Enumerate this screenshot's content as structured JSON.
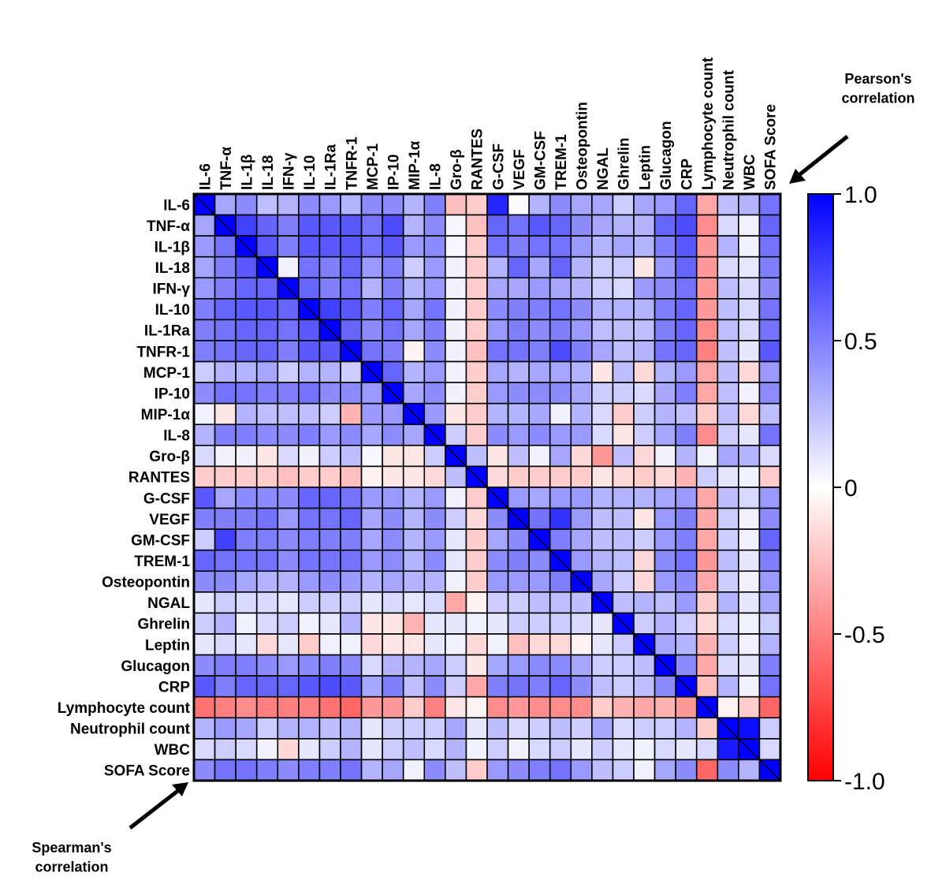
{
  "chart_data": {
    "type": "heatmap",
    "title": "",
    "variables": [
      "IL-6",
      "TNF-α",
      "IL-1β",
      "IL-18",
      "IFN-γ",
      "IL-10",
      "IL-1Ra",
      "TNFR-1",
      "MCP-1",
      "IP-10",
      "MIP-1α",
      "IL-8",
      "Gro-β",
      "RANTES",
      "G-CSF",
      "VEGF",
      "GM-CSF",
      "TREM-1",
      "Osteopontin",
      "NGAL",
      "Ghrelin",
      "Leptin",
      "Glucagon",
      "CRP",
      "Lymphocyte count",
      "Neutrophil count",
      "WBC",
      "SOFA Score"
    ],
    "upper_triangle": "Pearson's correlation",
    "lower_triangle": "Spearman's correlation",
    "colorbar": {
      "min": -1.0,
      "max": 1.0,
      "ticks": [
        1.0,
        0.5,
        0,
        -0.5,
        -1.0
      ],
      "tick_labels": [
        "1.0",
        "0.5",
        "0",
        "-0.5",
        "-1.0"
      ],
      "low_color": "#ff0000",
      "mid_color": "#ffffff",
      "high_color": "#0000ff"
    },
    "matrix": [
      [
        1.0,
        0.35,
        0.45,
        0.25,
        0.3,
        0.45,
        0.4,
        0.3,
        0.45,
        0.45,
        0.3,
        0.5,
        -0.25,
        -0.2,
        0.85,
        0.02,
        0.3,
        0.45,
        0.35,
        0.35,
        0.2,
        0.35,
        0.4,
        0.6,
        -0.35,
        0.25,
        0.3,
        0.55
      ],
      [
        0.35,
        1.0,
        0.75,
        0.6,
        0.5,
        0.65,
        0.65,
        0.65,
        0.55,
        0.7,
        0.3,
        0.45,
        0.03,
        -0.25,
        0.6,
        0.55,
        0.65,
        0.6,
        0.45,
        0.35,
        0.3,
        0.3,
        0.6,
        0.7,
        -0.45,
        0.15,
        0.05,
        0.6
      ],
      [
        0.4,
        0.55,
        1.0,
        0.65,
        0.5,
        0.65,
        0.65,
        0.65,
        0.55,
        0.65,
        0.4,
        0.45,
        0.03,
        -0.2,
        0.55,
        0.5,
        0.55,
        0.55,
        0.4,
        0.3,
        0.35,
        0.3,
        0.5,
        0.65,
        -0.4,
        0.3,
        0.05,
        0.55
      ],
      [
        0.35,
        0.5,
        0.65,
        1.0,
        0.05,
        0.55,
        0.5,
        0.6,
        0.4,
        0.5,
        0.2,
        0.4,
        0.05,
        -0.2,
        0.3,
        0.6,
        0.35,
        0.6,
        0.3,
        0.2,
        0.2,
        -0.1,
        0.4,
        0.6,
        -0.4,
        0.15,
        0.1,
        0.5
      ],
      [
        0.4,
        0.5,
        0.6,
        0.6,
        1.0,
        0.6,
        0.5,
        0.55,
        0.3,
        0.5,
        0.3,
        0.4,
        0.05,
        -0.2,
        0.35,
        0.35,
        0.4,
        0.35,
        0.3,
        0.2,
        0.15,
        0.4,
        0.45,
        0.55,
        -0.4,
        0.25,
        0.15,
        0.45
      ],
      [
        0.5,
        0.6,
        0.65,
        0.65,
        0.6,
        1.0,
        0.75,
        0.65,
        0.5,
        0.6,
        0.35,
        0.55,
        0.05,
        -0.2,
        0.45,
        0.5,
        0.5,
        0.55,
        0.45,
        0.3,
        0.3,
        0.3,
        0.5,
        0.6,
        -0.4,
        0.25,
        0.15,
        0.55
      ],
      [
        0.5,
        0.55,
        0.6,
        0.6,
        0.55,
        0.65,
        1.0,
        0.6,
        0.45,
        0.55,
        0.35,
        0.5,
        0.05,
        -0.2,
        0.4,
        0.5,
        0.45,
        0.5,
        0.4,
        0.25,
        0.25,
        0.25,
        0.5,
        0.6,
        -0.45,
        0.25,
        0.15,
        0.55
      ],
      [
        0.5,
        0.55,
        0.6,
        0.6,
        0.5,
        0.65,
        0.65,
        1.0,
        0.55,
        0.5,
        -0.05,
        0.45,
        0.05,
        -0.25,
        0.55,
        0.55,
        0.5,
        0.7,
        0.5,
        0.35,
        0.25,
        0.3,
        0.55,
        0.6,
        -0.5,
        0.25,
        0.1,
        0.65
      ],
      [
        0.2,
        0.3,
        0.3,
        0.35,
        0.2,
        0.3,
        0.3,
        0.2,
        1.0,
        0.6,
        0.3,
        0.4,
        0.05,
        -0.2,
        0.35,
        0.3,
        0.35,
        0.35,
        0.3,
        -0.1,
        0.25,
        -0.15,
        0.3,
        0.4,
        -0.35,
        0.25,
        -0.15,
        0.4
      ],
      [
        0.45,
        0.55,
        0.55,
        0.5,
        0.5,
        0.55,
        0.45,
        0.45,
        0.4,
        1.0,
        0.35,
        0.45,
        0.05,
        -0.2,
        0.4,
        0.45,
        0.45,
        0.45,
        0.35,
        0.2,
        0.2,
        0.15,
        0.35,
        0.5,
        -0.35,
        0.25,
        0.05,
        0.45
      ],
      [
        0.05,
        -0.1,
        0.3,
        0.25,
        0.25,
        0.25,
        0.2,
        -0.3,
        0.4,
        0.4,
        1.0,
        0.4,
        -0.1,
        -0.2,
        0.3,
        0.3,
        0.35,
        0.05,
        0.3,
        0.15,
        -0.2,
        0.2,
        0.3,
        0.25,
        -0.2,
        0.25,
        -0.15,
        0.25
      ],
      [
        0.3,
        0.5,
        0.5,
        0.45,
        0.45,
        0.5,
        0.4,
        0.45,
        0.35,
        0.45,
        0.35,
        1.0,
        0.2,
        -0.2,
        0.45,
        0.4,
        0.45,
        0.4,
        0.4,
        0.15,
        -0.1,
        0.2,
        0.35,
        0.5,
        -0.45,
        0.2,
        0.1,
        0.55
      ],
      [
        0.15,
        0.05,
        0.05,
        -0.1,
        0.15,
        0.05,
        0.2,
        0.25,
        0.03,
        -0.1,
        -0.1,
        0.2,
        1.0,
        0.25,
        -0.1,
        0.25,
        0.05,
        0.35,
        -0.15,
        -0.4,
        0.25,
        -0.15,
        0.05,
        0.3,
        0.05,
        0.35,
        0.3,
        0.15
      ],
      [
        -0.2,
        -0.2,
        -0.2,
        -0.2,
        -0.25,
        -0.2,
        -0.2,
        -0.25,
        -0.05,
        -0.1,
        -0.1,
        -0.15,
        0.25,
        1.0,
        -0.15,
        -0.2,
        -0.2,
        -0.2,
        -0.2,
        -0.1,
        -0.15,
        -0.2,
        -0.15,
        -0.3,
        0.2,
        0.1,
        0.05,
        -0.2
      ],
      [
        0.65,
        0.35,
        0.45,
        0.45,
        0.45,
        0.6,
        0.6,
        0.55,
        0.4,
        0.4,
        0.3,
        0.4,
        0.05,
        -0.2,
        1.0,
        0.4,
        0.35,
        0.4,
        0.4,
        0.3,
        0.3,
        0.3,
        0.35,
        0.4,
        -0.35,
        0.25,
        0.15,
        0.4
      ],
      [
        0.5,
        0.5,
        0.5,
        0.55,
        0.4,
        0.55,
        0.55,
        0.6,
        0.35,
        0.45,
        0.3,
        0.45,
        0.2,
        -0.15,
        0.45,
        1.0,
        0.55,
        0.8,
        0.4,
        0.25,
        0.25,
        -0.1,
        0.4,
        0.5,
        -0.35,
        0.2,
        0.05,
        0.45
      ],
      [
        0.2,
        0.75,
        0.5,
        0.5,
        0.45,
        0.5,
        0.5,
        0.5,
        0.35,
        0.45,
        0.3,
        0.4,
        0.1,
        -0.2,
        0.35,
        0.45,
        1.0,
        0.5,
        0.35,
        0.25,
        0.25,
        0.2,
        0.4,
        0.5,
        -0.35,
        0.2,
        0.05,
        0.6
      ],
      [
        0.6,
        0.55,
        0.55,
        0.55,
        0.45,
        0.55,
        0.55,
        0.55,
        0.4,
        0.45,
        0.3,
        0.45,
        0.1,
        -0.2,
        0.45,
        0.5,
        0.45,
        1.0,
        0.4,
        0.3,
        0.25,
        -0.15,
        0.45,
        0.55,
        -0.4,
        0.25,
        0.1,
        0.5
      ],
      [
        0.45,
        0.45,
        0.35,
        0.3,
        0.3,
        0.4,
        0.45,
        0.4,
        0.3,
        0.35,
        0.3,
        0.3,
        0.05,
        -0.2,
        0.4,
        0.4,
        0.4,
        0.5,
        1.0,
        0.35,
        0.2,
        -0.15,
        0.4,
        0.45,
        -0.35,
        0.2,
        0.05,
        0.4
      ],
      [
        0.1,
        0.2,
        0.15,
        0.15,
        0.1,
        0.2,
        0.2,
        0.2,
        0.1,
        0.15,
        0.1,
        0.15,
        -0.35,
        -0.05,
        0.2,
        0.2,
        0.25,
        0.25,
        0.25,
        1.0,
        0.25,
        0.3,
        0.25,
        0.4,
        -0.2,
        0.3,
        0.1,
        0.35
      ],
      [
        0.2,
        0.3,
        0.05,
        0.15,
        0.2,
        0.05,
        0.1,
        0.3,
        -0.1,
        -0.1,
        -0.3,
        0.1,
        0.1,
        0.05,
        0.1,
        0.2,
        0.2,
        0.2,
        0.15,
        0.1,
        1.0,
        0.2,
        0.3,
        0.2,
        -0.15,
        0.15,
        0.05,
        0.2
      ],
      [
        0.1,
        0.15,
        0.1,
        -0.15,
        0.1,
        -0.2,
        0.05,
        0.05,
        -0.15,
        -0.1,
        -0.1,
        0.1,
        0.05,
        -0.15,
        0.05,
        -0.25,
        -0.15,
        -0.15,
        -0.05,
        0.1,
        0.2,
        1.0,
        0.35,
        0.3,
        -0.3,
        0.2,
        0.05,
        0.3
      ],
      [
        0.45,
        0.5,
        0.5,
        0.45,
        0.4,
        0.45,
        0.5,
        0.45,
        0.15,
        0.3,
        0.3,
        0.35,
        0.2,
        -0.1,
        0.35,
        0.4,
        0.45,
        0.45,
        0.35,
        0.2,
        0.2,
        0.25,
        1.0,
        0.45,
        -0.35,
        0.15,
        0.1,
        0.5
      ],
      [
        0.65,
        0.5,
        0.6,
        0.6,
        0.6,
        0.65,
        0.7,
        0.65,
        0.35,
        0.5,
        0.25,
        0.45,
        0.2,
        -0.35,
        0.5,
        0.55,
        0.5,
        0.6,
        0.45,
        0.25,
        0.2,
        0.25,
        0.45,
        1.0,
        -0.25,
        0.3,
        0.05,
        0.55
      ],
      [
        -0.55,
        -0.5,
        -0.45,
        -0.5,
        -0.5,
        -0.5,
        -0.55,
        -0.6,
        -0.4,
        -0.4,
        -0.2,
        -0.5,
        -0.1,
        -0.05,
        -0.45,
        -0.4,
        -0.45,
        -0.45,
        -0.45,
        -0.2,
        -0.3,
        -0.35,
        -0.3,
        -0.4,
        1.0,
        -0.05,
        -0.2,
        -0.6
      ],
      [
        0.3,
        0.4,
        0.35,
        0.2,
        0.3,
        0.3,
        0.25,
        0.3,
        0.1,
        0.2,
        0.2,
        0.2,
        0.35,
        0.1,
        0.25,
        0.15,
        0.2,
        0.25,
        0.2,
        0.35,
        0.15,
        0.2,
        0.2,
        0.3,
        -0.2,
        1.0,
        0.95,
        0.2
      ],
      [
        0.15,
        0.2,
        0.15,
        0.05,
        -0.15,
        0.1,
        0.2,
        0.3,
        0.1,
        0.2,
        0.25,
        0.15,
        0.3,
        0.05,
        0.2,
        0.05,
        0.15,
        0.2,
        0.1,
        0.2,
        0.1,
        0.05,
        0.15,
        0.1,
        0.15,
        0.9,
        1.0,
        0.15
      ],
      [
        0.45,
        0.55,
        0.55,
        0.5,
        0.45,
        0.5,
        0.5,
        0.55,
        0.3,
        0.35,
        0.05,
        0.45,
        0.25,
        -0.2,
        0.4,
        0.45,
        0.5,
        0.55,
        0.4,
        0.25,
        0.2,
        0.05,
        0.35,
        0.45,
        -0.6,
        0.45,
        0.3,
        1.0
      ]
    ]
  }
}
